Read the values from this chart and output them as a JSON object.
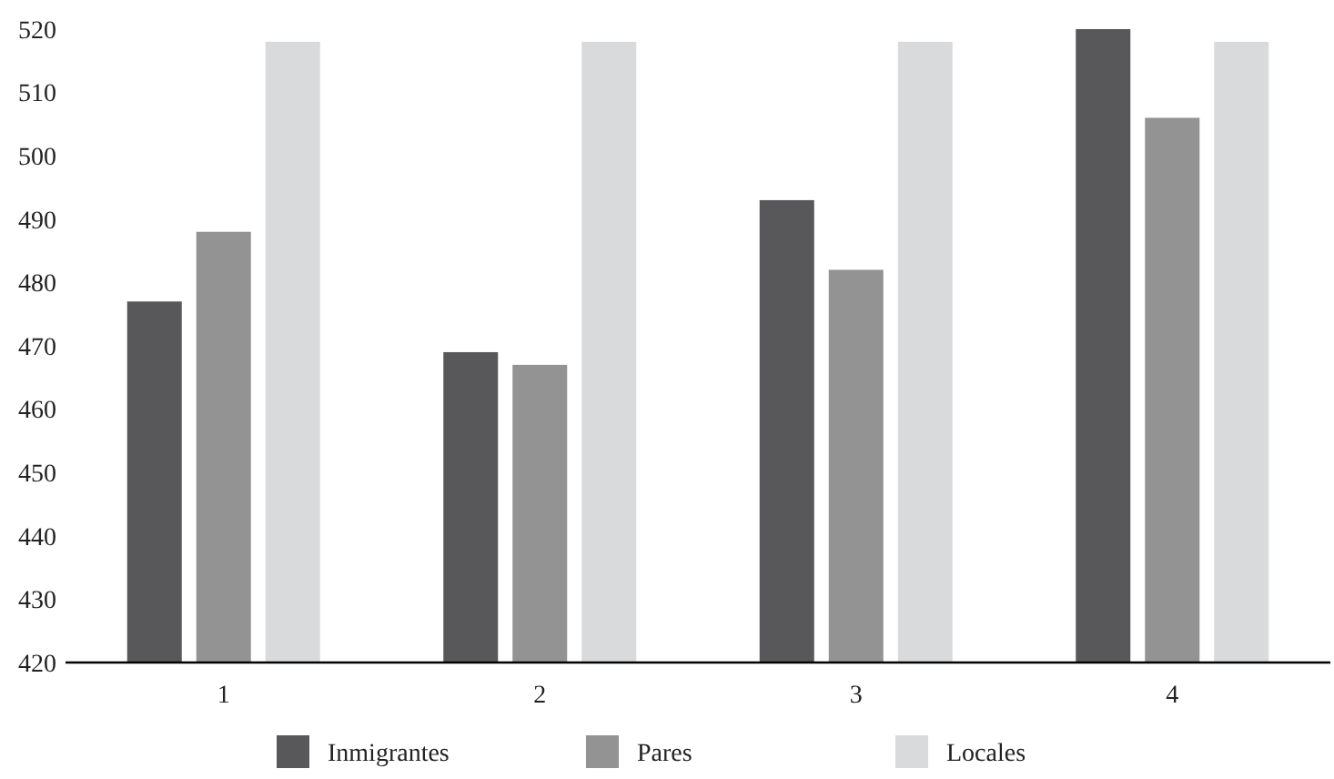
{
  "chart_data": {
    "type": "bar",
    "categories": [
      "1",
      "2",
      "3",
      "4"
    ],
    "series": [
      {
        "name": "Inmigrantes",
        "color": "#58585a",
        "values": [
          477,
          469,
          493,
          520
        ]
      },
      {
        "name": "Pares",
        "color": "#939394",
        "values": [
          488,
          467,
          482,
          506
        ]
      },
      {
        "name": "Locales",
        "color": "#d9dadb",
        "values": [
          518,
          518,
          518,
          518
        ]
      }
    ],
    "ylim": [
      420,
      520
    ],
    "yticks": [
      420,
      430,
      440,
      450,
      460,
      470,
      480,
      490,
      500,
      510,
      520
    ],
    "grid": false,
    "legend": "bottom"
  }
}
